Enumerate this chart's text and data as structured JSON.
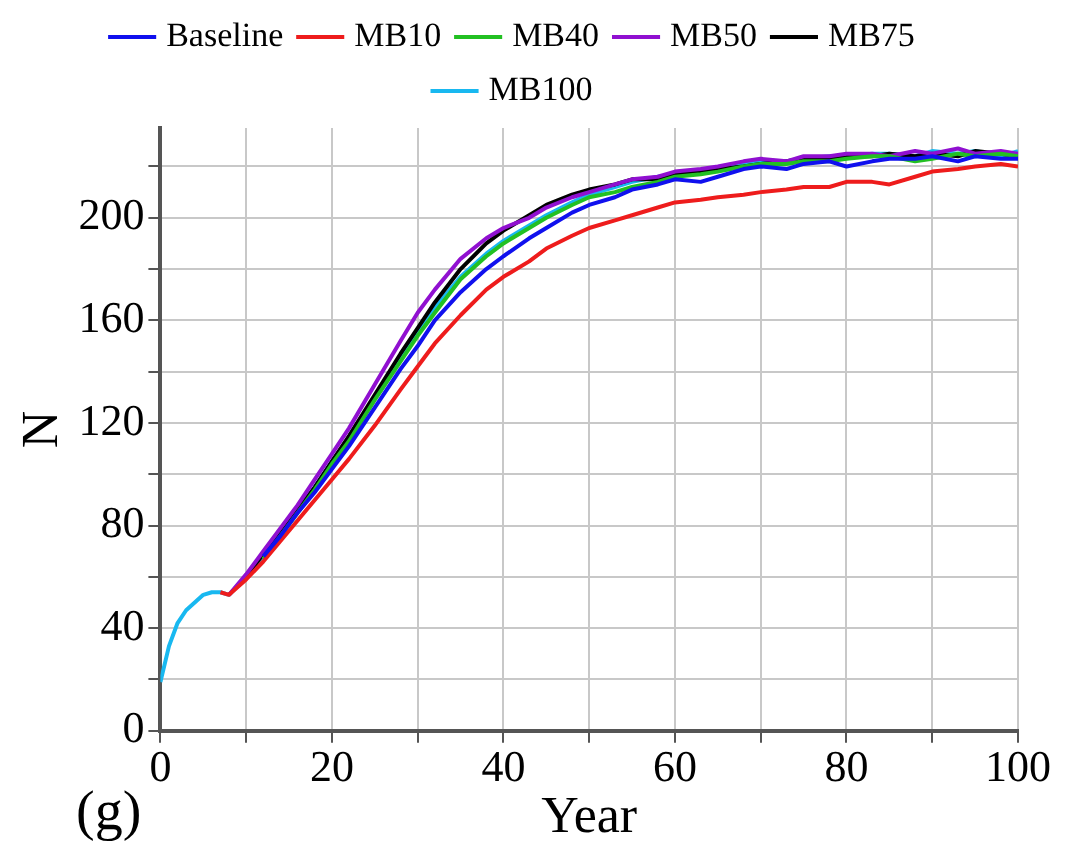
{
  "chart_data": {
    "type": "line",
    "xlabel": "Year",
    "ylabel": "N",
    "annotations": [
      "(g)"
    ],
    "x": [
      0,
      1,
      2,
      3,
      4,
      5,
      6,
      7,
      8,
      10,
      12,
      14,
      16,
      18,
      20,
      22,
      25,
      28,
      30,
      32,
      35,
      38,
      40,
      43,
      45,
      48,
      50,
      53,
      55,
      58,
      60,
      63,
      65,
      68,
      70,
      73,
      75,
      78,
      80,
      83,
      85,
      88,
      90,
      93,
      95,
      98,
      100
    ],
    "series": [
      {
        "name": "Baseline",
        "color": "#1010ee",
        "values": [
          null,
          null,
          null,
          null,
          null,
          null,
          null,
          null,
          null,
          null,
          68,
          76,
          85,
          93,
          102,
          111,
          126,
          141,
          150,
          160,
          171,
          180,
          185,
          192,
          196,
          202,
          205,
          208,
          211,
          213,
          215,
          214,
          216,
          219,
          220,
          219,
          221,
          222,
          220,
          222,
          223,
          223,
          224,
          222,
          224,
          223,
          223
        ]
      },
      {
        "name": "MB10",
        "color": "#ee1c1c",
        "values": [
          null,
          null,
          null,
          null,
          null,
          null,
          null,
          54,
          53,
          59,
          66,
          74,
          82,
          90,
          98,
          106,
          119,
          133,
          142,
          151,
          162,
          172,
          177,
          183,
          188,
          193,
          196,
          199,
          201,
          204,
          206,
          207,
          208,
          209,
          210,
          211,
          212,
          212,
          214,
          214,
          213,
          216,
          218,
          219,
          220,
          221,
          220
        ]
      },
      {
        "name": "MB40",
        "color": "#22c022",
        "values": [
          null,
          null,
          null,
          null,
          null,
          null,
          null,
          null,
          null,
          null,
          67,
          76,
          85,
          94,
          104,
          113,
          129,
          144,
          154,
          163,
          176,
          185,
          190,
          196,
          200,
          205,
          208,
          210,
          212,
          214,
          216,
          217,
          218,
          220,
          221,
          221,
          222,
          222,
          223,
          224,
          224,
          222,
          223,
          225,
          224,
          225,
          224
        ]
      },
      {
        "name": "MB50",
        "color": "#9010d0",
        "values": [
          null,
          null,
          null,
          null,
          null,
          null,
          null,
          null,
          53,
          61,
          70,
          79,
          88,
          98,
          108,
          118,
          135,
          152,
          163,
          172,
          184,
          192,
          196,
          200,
          204,
          208,
          210,
          213,
          215,
          216,
          218,
          219,
          220,
          222,
          223,
          222,
          224,
          224,
          225,
          225,
          224,
          226,
          225,
          227,
          225,
          226,
          225
        ]
      },
      {
        "name": "MB75",
        "color": "#000000",
        "values": [
          null,
          null,
          null,
          null,
          null,
          null,
          null,
          null,
          null,
          60,
          69,
          77,
          86,
          95,
          105,
          115,
          131,
          147,
          157,
          167,
          180,
          190,
          195,
          201,
          205,
          209,
          211,
          213,
          215,
          215,
          217,
          218,
          219,
          220,
          221,
          222,
          223,
          223,
          224,
          224,
          225,
          224,
          225,
          224,
          226,
          225,
          224
        ]
      },
      {
        "name": "MB100",
        "color": "#18b8f0",
        "values": [
          19,
          33,
          42,
          47,
          50,
          53,
          54,
          54,
          53,
          60,
          68,
          77,
          86,
          95,
          105,
          114,
          130,
          145,
          155,
          165,
          177,
          186,
          191,
          197,
          201,
          206,
          209,
          212,
          214,
          216,
          217,
          218,
          219,
          221,
          222,
          222,
          223,
          224,
          224,
          225,
          225,
          224,
          226,
          225,
          226,
          224,
          226
        ]
      }
    ],
    "xlim": [
      0,
      100
    ],
    "xticks": [
      0,
      {
        "value": 10,
        "label": null
      },
      20,
      {
        "value": 30,
        "label": null
      },
      40,
      {
        "value": 50,
        "label": null
      },
      60,
      {
        "value": 70,
        "label": null
      },
      80,
      {
        "value": 90,
        "label": null
      },
      100
    ],
    "ylim": [
      0,
      235
    ],
    "yticks": [
      0,
      {
        "value": 20,
        "label": null
      },
      40,
      {
        "value": 60,
        "label": null
      },
      80,
      {
        "value": 100,
        "label": null
      },
      120,
      {
        "value": 140,
        "label": null
      },
      160,
      {
        "value": 180,
        "label": null
      },
      200,
      {
        "value": 220,
        "label": null
      }
    ],
    "grid": true,
    "legend": "top",
    "marker": "none",
    "line_style": "solid"
  }
}
